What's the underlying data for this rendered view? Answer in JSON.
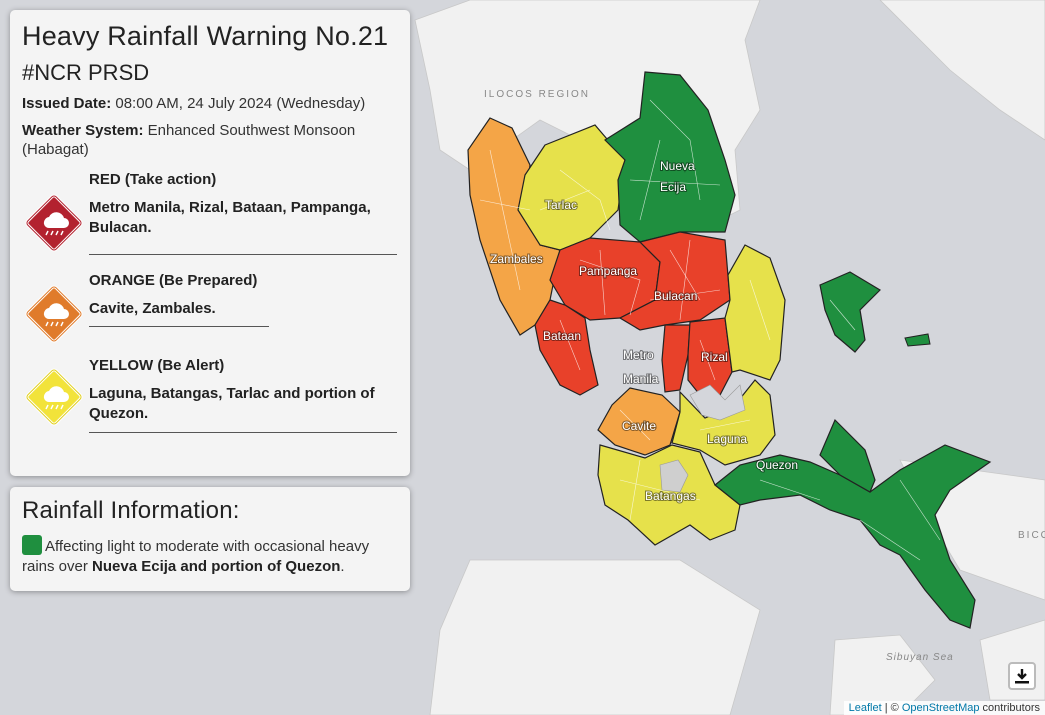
{
  "warning": {
    "title": "Heavy Rainfall Warning No.21",
    "subtitle": "#NCR PRSD",
    "issued_label": "Issued Date:",
    "issued_value": "08:00 AM, 24 July 2024 (Wednesday)",
    "system_label": "Weather System:",
    "system_value": "Enhanced Southwest Monsoon (Habagat)",
    "levels": [
      {
        "title": "RED (Take action)",
        "areas": "Metro Manila, Rizal, Bataan, Pampanga, Bulacan.",
        "color": "#b3222f"
      },
      {
        "title": "ORANGE (Be Prepared)",
        "areas": "Cavite, Zambales.",
        "color": "#e07b2b"
      },
      {
        "title": "YELLOW (Be Alert)",
        "areas": "Laguna, Batangas, Tarlac and portion of Quezon.",
        "color": "#f2e33a"
      }
    ]
  },
  "rainfall": {
    "title": "Rainfall Information:",
    "text_before": "Affecting light to moderate with occasional heavy rains over ",
    "text_bold": "Nueva Ecija and portion of Quezon",
    "text_after": ".",
    "swatch_color": "#1f8f3f"
  },
  "map": {
    "region_labels": {
      "ilocos": "ILOCOS REGION",
      "bicol": "BICO",
      "sibuyan": "Sibuyan Sea"
    },
    "provinces": {
      "nueva_ecija": "Nueva Ecija",
      "tarlac": "Tarlac",
      "zambales": "Zambales",
      "pampanga": "Pampanga",
      "bulacan": "Bulacan",
      "bataan": "Bataan",
      "metro": "Metro",
      "manila": "Manila",
      "rizal": "Rizal",
      "cavite": "Cavite",
      "laguna": "Laguna",
      "quezon": "Quezon",
      "batangas": "Batangas"
    },
    "colors": {
      "red": "#e8412a",
      "orange": "#f4a547",
      "yellow": "#e6e14b",
      "green": "#1f8f3f",
      "land": "#f1f1f1",
      "water": "#d4d6db"
    },
    "download_icon": "download-icon"
  },
  "attribution": {
    "leaflet": "Leaflet",
    "sep": " | © ",
    "osm": "OpenStreetMap",
    "contrib": " contributors"
  }
}
